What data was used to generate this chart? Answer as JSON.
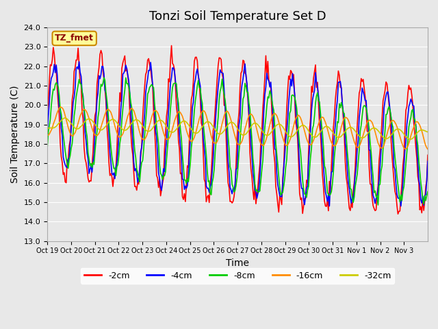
{
  "title": "Tonzi Soil Temperature Set D",
  "xlabel": "Time",
  "ylabel": "Soil Temperature (C)",
  "ylim": [
    13.0,
    24.0
  ],
  "yticks": [
    13.0,
    14.0,
    15.0,
    16.0,
    17.0,
    18.0,
    19.0,
    20.0,
    21.0,
    22.0,
    23.0,
    24.0
  ],
  "label_annotation": "TZ_fmet",
  "legend_labels": [
    "-2cm",
    "-4cm",
    "-8cm",
    "-16cm",
    "-32cm"
  ],
  "line_colors": [
    "#FF0000",
    "#0000FF",
    "#00CC00",
    "#FF8C00",
    "#CCCC00"
  ],
  "background_color": "#E8E8E8",
  "plot_bg_color": "#E8E8E8",
  "tick_labels": [
    "Oct 19",
    "Oct 20",
    "Oct 21",
    "Oct 22",
    "Oct 23",
    "Oct 24",
    "Oct 25",
    "Oct 26",
    "Oct 27",
    "Oct 28",
    "Oct 29",
    "Oct 30",
    "Oct 31",
    "Nov 1",
    "Nov 2",
    "Nov 3"
  ],
  "n_days": 16,
  "points_per_day": 24,
  "title_fontsize": 13,
  "axis_fontsize": 10
}
